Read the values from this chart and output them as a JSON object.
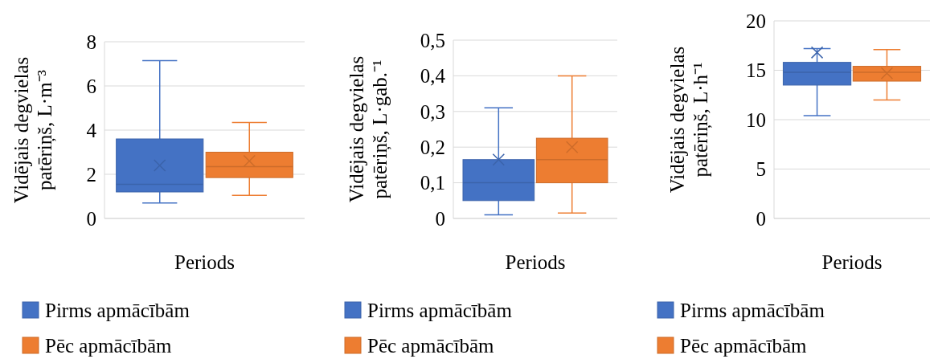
{
  "chart_data": [
    {
      "type": "box",
      "xlabel": "Periods",
      "ylabel": "Vidējais degvielas patēriņš, L·m⁻³",
      "categories": [
        null
      ],
      "ylim": [
        0,
        8
      ],
      "yticks": [
        0,
        2,
        4,
        6,
        8
      ],
      "grid": "y",
      "legend": "bottom",
      "marker": "cross",
      "series": [
        {
          "name": "Pirms apmācībām",
          "color": "#4472c4",
          "boxes": [
            {
              "low": 0.7,
              "q1": 1.2,
              "median": 1.55,
              "q3": 3.6,
              "high": 7.15,
              "mean": 2.4
            }
          ]
        },
        {
          "name": "Pēc apmācībām",
          "color": "#ed7d31",
          "boxes": [
            {
              "low": 1.05,
              "q1": 1.85,
              "median": 2.35,
              "q3": 3.0,
              "high": 4.35,
              "mean": 2.6
            }
          ]
        }
      ]
    },
    {
      "type": "box",
      "xlabel": "Periods",
      "ylabel": "Vidējais degvielas patēriņš, L·gab.⁻¹",
      "categories": [
        null
      ],
      "ylim": [
        0,
        0.5
      ],
      "yticks": [
        0,
        {
          "value": 0.1,
          "label": "0,1"
        },
        {
          "value": 0.2,
          "label": "0,2"
        },
        {
          "value": 0.3,
          "label": "0,3"
        },
        {
          "value": 0.4,
          "label": "0,4"
        },
        {
          "value": 0.5,
          "label": "0,5"
        }
      ],
      "grid": "y",
      "legend": "bottom",
      "marker": "cross",
      "series": [
        {
          "name": "Pirms apmācībām",
          "color": "#4472c4",
          "boxes": [
            {
              "low": 0.01,
              "q1": 0.05,
              "median": 0.1,
              "q3": 0.165,
              "high": 0.31,
              "mean": 0.165
            }
          ]
        },
        {
          "name": "Pēc apmācībām",
          "color": "#ed7d31",
          "boxes": [
            {
              "low": 0.015,
              "q1": 0.1,
              "median": 0.165,
              "q3": 0.225,
              "high": 0.4,
              "mean": 0.2
            }
          ]
        }
      ]
    },
    {
      "type": "box",
      "xlabel": "Periods",
      "ylabel": "Vidējais degvielas patēriņš, L·h⁻¹",
      "categories": [
        null
      ],
      "ylim": [
        0,
        20
      ],
      "yticks": [
        0,
        5,
        10,
        15,
        20
      ],
      "grid": "y",
      "legend": "bottom",
      "marker": "cross",
      "series": [
        {
          "name": "Pirms apmācībām",
          "color": "#4472c4",
          "boxes": [
            {
              "low": 10.4,
              "q1": 13.5,
              "median": 14.8,
              "q3": 15.8,
              "high": 17.2,
              "mean": 16.8
            }
          ]
        },
        {
          "name": "Pēc apmācībām",
          "color": "#ed7d31",
          "boxes": [
            {
              "low": 12,
              "q1": 13.9,
              "median": 14.8,
              "q3": 15.4,
              "high": 17.1,
              "mean": 14.7
            }
          ]
        }
      ]
    }
  ]
}
